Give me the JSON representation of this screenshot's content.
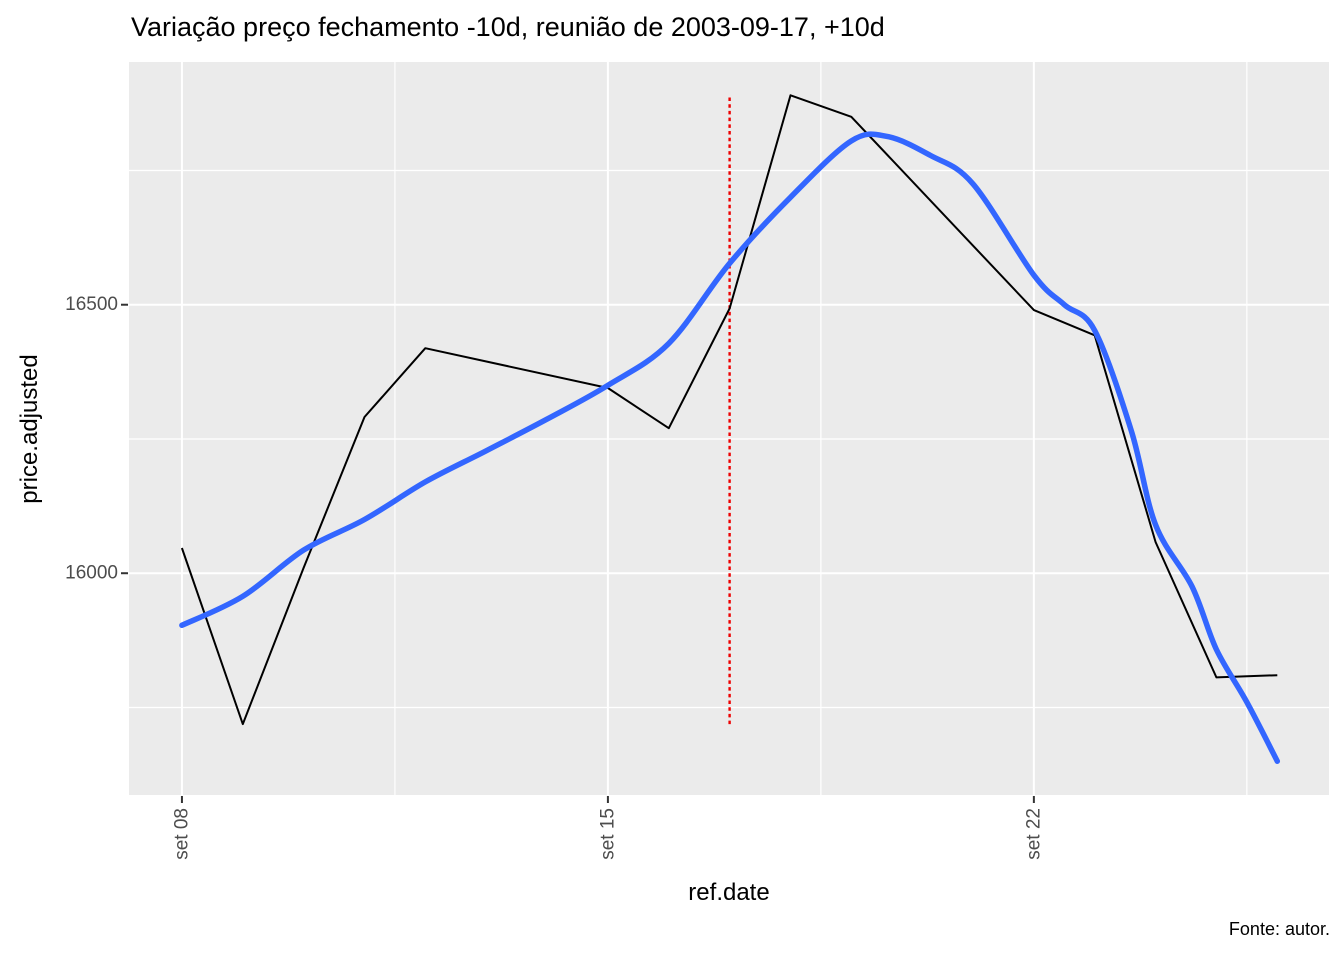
{
  "chart_data": {
    "type": "line",
    "title": "Variação preço fechamento -10d, reunião de 2003-09-17, +10d",
    "xlabel": "ref.date",
    "ylabel": "price.adjusted",
    "caption": "Fonte: autor.",
    "x_ticks": [
      {
        "label": "set 08",
        "day": 8
      },
      {
        "label": "set 15",
        "day": 15
      },
      {
        "label": "set 22",
        "day": 22
      }
    ],
    "x_minor_days": [
      11.5,
      18.5,
      25.5
    ],
    "y_ticks": [
      {
        "label": "16000",
        "value": 16000
      },
      {
        "label": "16500",
        "value": 16500
      }
    ],
    "y_minor_values": [
      15750,
      16250,
      16750
    ],
    "xlim_days": [
      7.13,
      26.85
    ],
    "ylim": [
      15587,
      16952
    ],
    "x_month": "2003-09",
    "grid": true,
    "legend": "none",
    "panel_bg": "#EBEBEB",
    "grid_color": "#FFFFFF",
    "tick_text_color": "#4D4D4D",
    "tick_mark_color": "#333333",
    "event_line": {
      "date": "2003-09-17",
      "day": 17,
      "value_from": 15719,
      "value_to": 16890,
      "color": "#EE0000",
      "style": "dotted"
    },
    "series": [
      {
        "name": "price.adjusted",
        "color": "#000000",
        "width": 2,
        "points": [
          {
            "date": "2003-09-08",
            "day": 8,
            "value": 16047
          },
          {
            "date": "2003-09-09",
            "day": 9,
            "value": 15719
          },
          {
            "date": "2003-09-10",
            "day": 10,
            "value": 16010
          },
          {
            "date": "2003-09-11",
            "day": 11,
            "value": 16291
          },
          {
            "date": "2003-09-12",
            "day": 12,
            "value": 16419
          },
          {
            "date": "2003-09-15",
            "day": 15,
            "value": 16345
          },
          {
            "date": "2003-09-16",
            "day": 16,
            "value": 16270
          },
          {
            "date": "2003-09-17",
            "day": 17,
            "value": 16493
          },
          {
            "date": "2003-09-18",
            "day": 18,
            "value": 16890
          },
          {
            "date": "2003-09-19",
            "day": 19,
            "value": 16850
          },
          {
            "date": "2003-09-22",
            "day": 22,
            "value": 16490
          },
          {
            "date": "2003-09-23",
            "day": 23,
            "value": 16443
          },
          {
            "date": "2003-09-24",
            "day": 24,
            "value": 16058
          },
          {
            "date": "2003-09-25",
            "day": 25,
            "value": 15806
          },
          {
            "date": "2003-09-26",
            "day": 26,
            "value": 15810
          }
        ]
      },
      {
        "name": "loess smooth",
        "color": "#3366FF",
        "width": 5.5,
        "smooth": true,
        "points": [
          {
            "day": 8,
            "value": 15903
          },
          {
            "day": 9,
            "value": 15957
          },
          {
            "day": 10,
            "value": 16043
          },
          {
            "day": 11,
            "value": 16100
          },
          {
            "day": 12,
            "value": 16170
          },
          {
            "day": 13,
            "value": 16228
          },
          {
            "day": 14,
            "value": 16287
          },
          {
            "day": 15,
            "value": 16350
          },
          {
            "day": 16,
            "value": 16428
          },
          {
            "day": 17,
            "value": 16577
          },
          {
            "day": 18,
            "value": 16700
          },
          {
            "day": 19,
            "value": 16805
          },
          {
            "day": 19.6,
            "value": 16813
          },
          {
            "day": 20.3,
            "value": 16778
          },
          {
            "day": 21,
            "value": 16725
          },
          {
            "day": 22,
            "value": 16555
          },
          {
            "day": 22.5,
            "value": 16500
          },
          {
            "day": 23,
            "value": 16452
          },
          {
            "day": 23.6,
            "value": 16266
          },
          {
            "day": 24,
            "value": 16090
          },
          {
            "day": 24.6,
            "value": 15975
          },
          {
            "day": 25,
            "value": 15858
          },
          {
            "day": 25.5,
            "value": 15760
          },
          {
            "day": 26,
            "value": 15650
          }
        ]
      }
    ]
  }
}
